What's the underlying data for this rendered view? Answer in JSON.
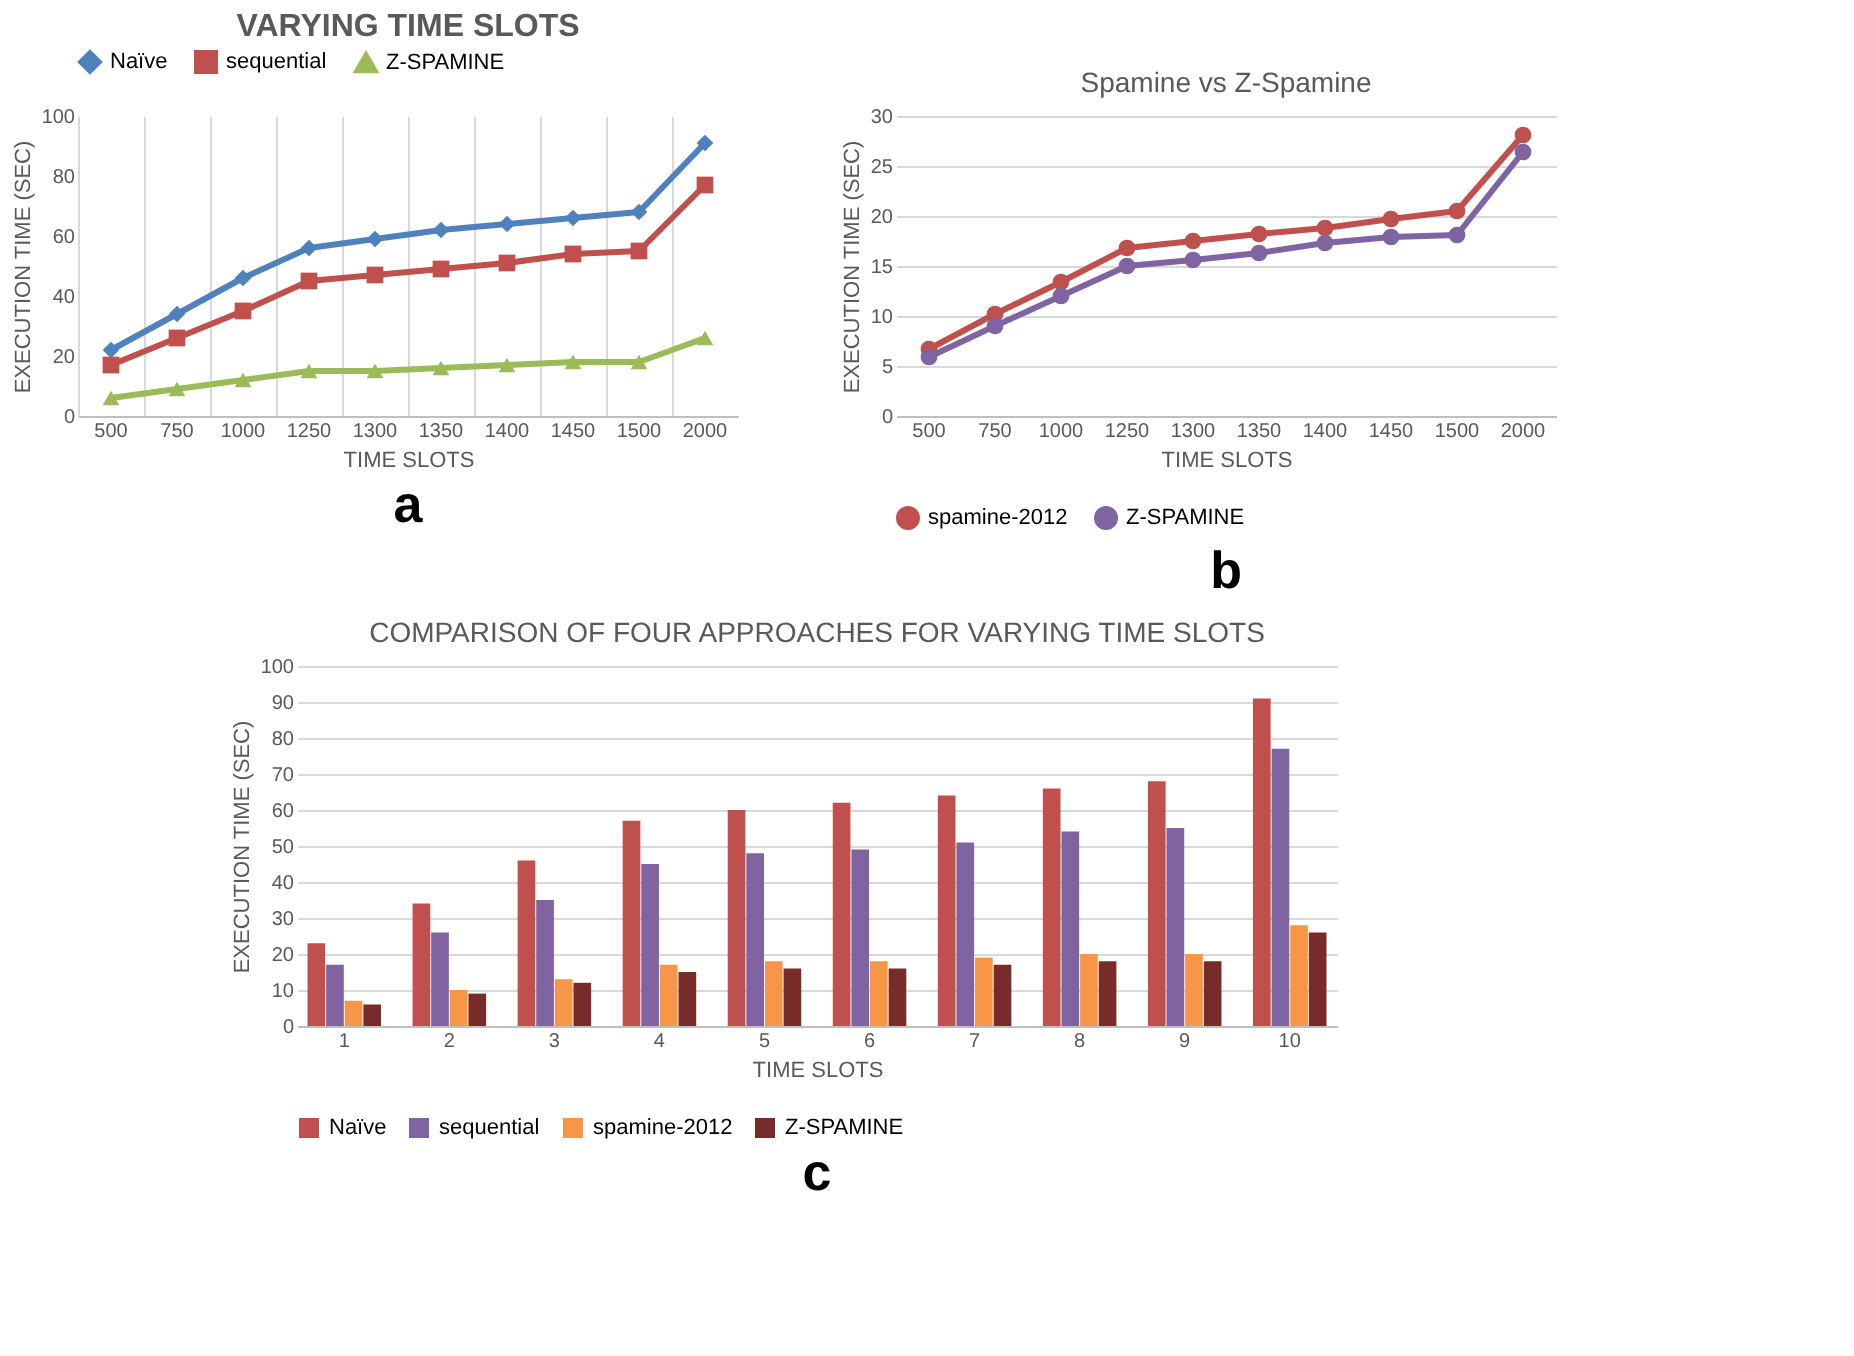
{
  "chart_data": [
    {
      "type": "line",
      "title": "VARYING TIME SLOTS",
      "xlabel": "TIME SLOTS",
      "ylabel": "EXECUTION TIME (SEC)",
      "categories": [
        "500",
        "750",
        "1000",
        "1250",
        "1300",
        "1350",
        "1400",
        "1450",
        "1500",
        "2000"
      ],
      "ylim": [
        0,
        100
      ],
      "yticks": [
        0,
        20,
        40,
        60,
        80,
        100
      ],
      "grid": "x",
      "legend": "top",
      "annotations": [
        "a"
      ],
      "series": [
        {
          "name": "Naïve",
          "color": "#4f81bd",
          "marker": "diamond",
          "values": [
            22,
            34,
            46,
            56,
            59,
            62,
            64,
            66,
            68,
            91
          ]
        },
        {
          "name": "sequential",
          "color": "#c0504d",
          "marker": "square",
          "values": [
            17,
            26,
            35,
            45,
            47,
            49,
            51,
            54,
            55,
            77
          ]
        },
        {
          "name": "Z-SPAMINE",
          "color": "#9bbb59",
          "marker": "triangle",
          "values": [
            6,
            9,
            12,
            15,
            15,
            16,
            17,
            18,
            18,
            26
          ]
        }
      ]
    },
    {
      "type": "line",
      "title": "Spamine vs Z-Spamine",
      "xlabel": "TIME SLOTS",
      "ylabel": "EXECUTION TIME (SEC)",
      "categories": [
        "500",
        "750",
        "1000",
        "1250",
        "1300",
        "1350",
        "1400",
        "1450",
        "1500",
        "2000"
      ],
      "ylim": [
        0,
        30
      ],
      "yticks": [
        0,
        5,
        10,
        15,
        20,
        25,
        30
      ],
      "grid": "y",
      "legend": "bottom",
      "marker": "circle",
      "annotations": [
        "b"
      ],
      "series": [
        {
          "name": "spamine-2012",
          "color": "#c0504d",
          "values": [
            6.7,
            10.2,
            13.4,
            16.8,
            17.5,
            18.2,
            18.8,
            19.7,
            20.5,
            28.1
          ]
        },
        {
          "name": "Z-SPAMINE",
          "color": "#8064a2",
          "values": [
            5.9,
            9,
            12,
            15,
            15.6,
            16.3,
            17.3,
            17.9,
            18.1,
            26.4
          ]
        }
      ]
    },
    {
      "type": "bar",
      "title": "COMPARISON OF FOUR APPROACHES FOR VARYING TIME SLOTS",
      "xlabel": "TIME SLOTS",
      "ylabel": "EXECUTION TIME (SEC)",
      "categories": [
        "1",
        "2",
        "3",
        "4",
        "5",
        "6",
        "7",
        "8",
        "9",
        "10"
      ],
      "ylim": [
        0,
        100
      ],
      "yticks": [
        0,
        10,
        20,
        30,
        40,
        50,
        60,
        70,
        80,
        90,
        100
      ],
      "grid": "y",
      "legend": "bottom",
      "annotations": [
        "c"
      ],
      "series": [
        {
          "name": "Naïve",
          "color": "#c0504d",
          "values": [
            23,
            34,
            46,
            57,
            60,
            62,
            64,
            66,
            68,
            91
          ]
        },
        {
          "name": "sequential",
          "color": "#8064a2",
          "values": [
            17,
            26,
            35,
            45,
            48,
            49,
            51,
            54,
            55,
            77
          ]
        },
        {
          "name": "spamine-2012",
          "color": "#f79646",
          "values": [
            7,
            10,
            13,
            17,
            18,
            18,
            19,
            20,
            20,
            28
          ]
        },
        {
          "name": "Z-SPAMINE",
          "color": "#772c2a",
          "values": [
            6,
            9,
            12,
            15,
            16,
            16,
            17,
            18,
            18,
            26
          ]
        }
      ]
    }
  ]
}
